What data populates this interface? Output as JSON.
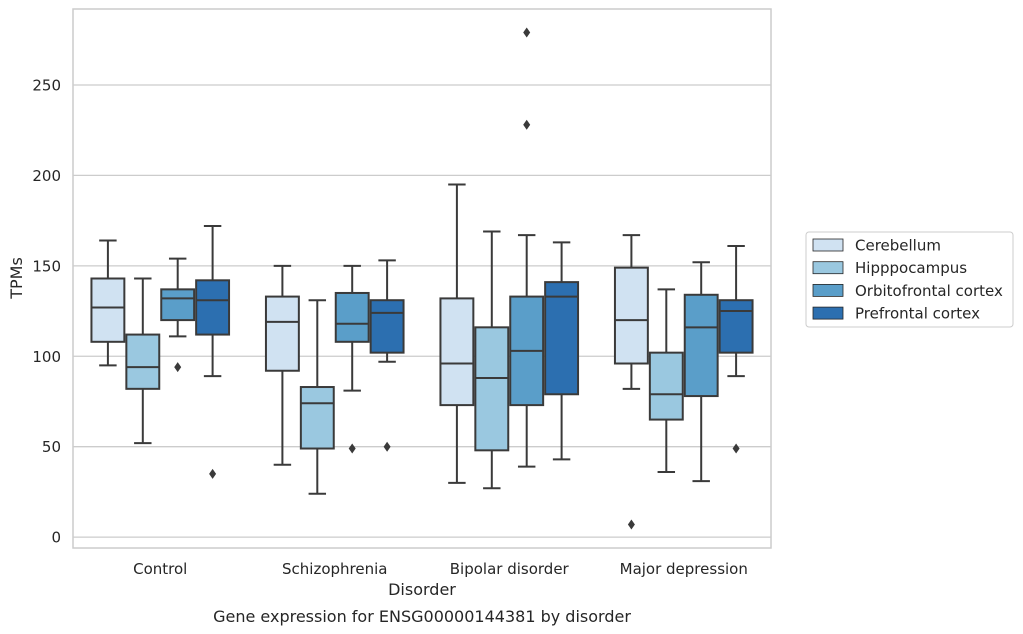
{
  "chart_data": {
    "type": "box",
    "caption": "Gene expression for ENSG00000144381 by disorder",
    "xlabel": "Disorder",
    "ylabel": "TPMs",
    "ylim": [
      -6,
      292
    ],
    "yticks": [
      0,
      50,
      100,
      150,
      200,
      250
    ],
    "grid": "horizontal",
    "legend_position": "right",
    "categories": [
      "Control",
      "Schizophrenia",
      "Bipolar disorder",
      "Major depression"
    ],
    "series": [
      {
        "name": "Cerebellum",
        "color": "#d0e2f2",
        "boxes": [
          {
            "whislo": 95,
            "q1": 108,
            "med": 127,
            "q3": 143,
            "whishi": 164,
            "fliers": []
          },
          {
            "whislo": 40,
            "q1": 92,
            "med": 119,
            "q3": 133,
            "whishi": 150,
            "fliers": []
          },
          {
            "whislo": 30,
            "q1": 73,
            "med": 96,
            "q3": 132,
            "whishi": 195,
            "fliers": []
          },
          {
            "whislo": 82,
            "q1": 96,
            "med": 120,
            "q3": 149,
            "whishi": 167,
            "fliers": [
              7
            ]
          }
        ]
      },
      {
        "name": "Hipppocampus",
        "color": "#9ac8e0",
        "boxes": [
          {
            "whislo": 52,
            "q1": 82,
            "med": 94,
            "q3": 112,
            "whishi": 143,
            "fliers": []
          },
          {
            "whislo": 24,
            "q1": 49,
            "med": 74,
            "q3": 83,
            "whishi": 131,
            "fliers": []
          },
          {
            "whislo": 27,
            "q1": 48,
            "med": 88,
            "q3": 116,
            "whishi": 169,
            "fliers": []
          },
          {
            "whislo": 36,
            "q1": 65,
            "med": 79,
            "q3": 102,
            "whishi": 137,
            "fliers": []
          }
        ]
      },
      {
        "name": "Orbitofrontal cortex",
        "color": "#5a9ec9",
        "boxes": [
          {
            "whislo": 111,
            "q1": 120,
            "med": 132,
            "q3": 137,
            "whishi": 154,
            "fliers": [
              94
            ]
          },
          {
            "whislo": 81,
            "q1": 108,
            "med": 118,
            "q3": 135,
            "whishi": 150,
            "fliers": [
              49
            ]
          },
          {
            "whislo": 39,
            "q1": 73,
            "med": 103,
            "q3": 133,
            "whishi": 167,
            "fliers": [
              228,
              279
            ]
          },
          {
            "whislo": 31,
            "q1": 78,
            "med": 116,
            "q3": 134,
            "whishi": 152,
            "fliers": []
          }
        ]
      },
      {
        "name": "Prefrontal cortex",
        "color": "#2c6fb0",
        "boxes": [
          {
            "whislo": 89,
            "q1": 112,
            "med": 131,
            "q3": 142,
            "whishi": 172,
            "fliers": [
              35
            ]
          },
          {
            "whislo": 97,
            "q1": 102,
            "med": 124,
            "q3": 131,
            "whishi": 153,
            "fliers": [
              50
            ]
          },
          {
            "whislo": 43,
            "q1": 79,
            "med": 133,
            "q3": 141,
            "whishi": 163,
            "fliers": []
          },
          {
            "whislo": 89,
            "q1": 102,
            "med": 125,
            "q3": 131,
            "whishi": 161,
            "fliers": [
              49
            ]
          }
        ]
      }
    ]
  }
}
